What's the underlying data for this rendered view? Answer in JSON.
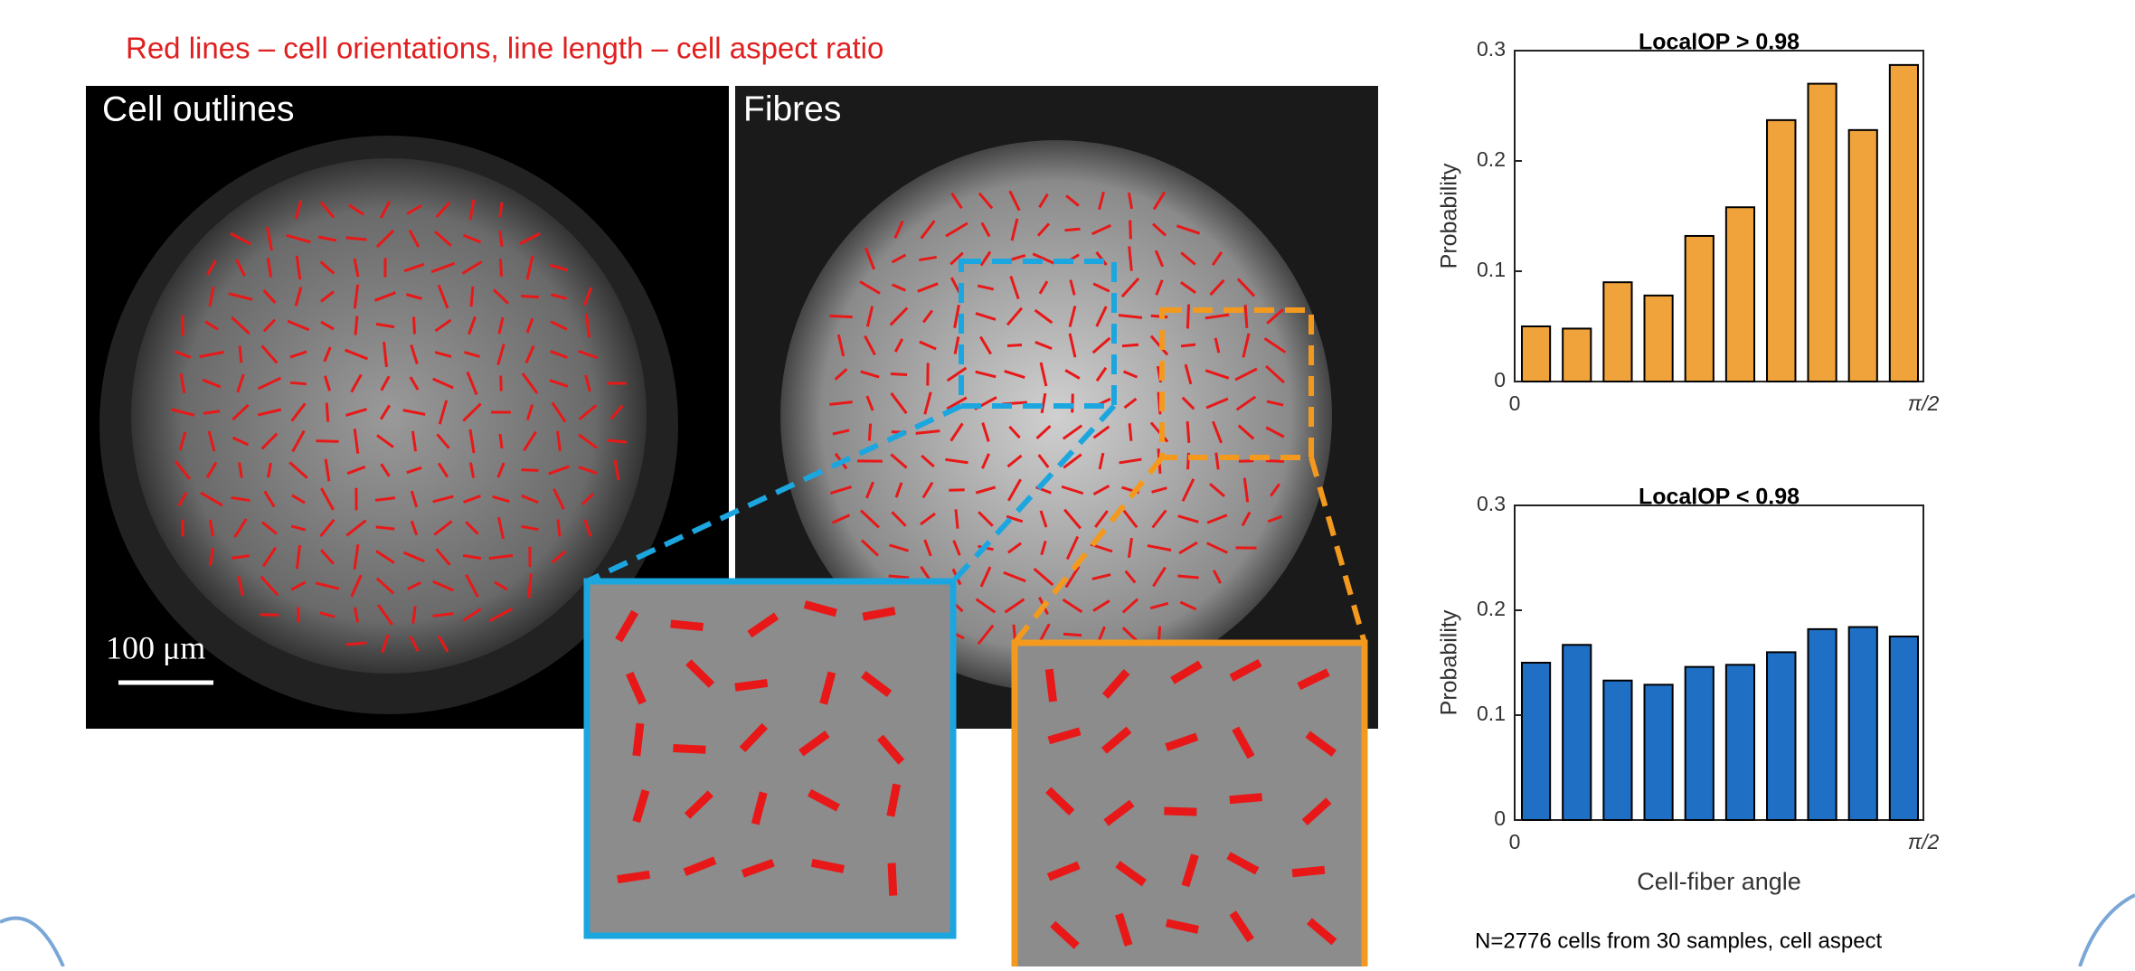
{
  "annotation": "Red lines – cell orientations, line length – cell aspect ratio",
  "panels": [
    {
      "label": "Cell outlines"
    },
    {
      "label": "Fibres"
    }
  ],
  "scale_bar": "100 μm",
  "footnote": "N=2776 cells from 30 samples, cell aspect",
  "chart_data": [
    {
      "type": "histogram",
      "title": "LocalOP > 0.98",
      "ylabel": "Probability",
      "color": "#f0a33a",
      "bins": [
        0,
        0.157,
        0.314,
        0.471,
        0.628,
        0.785,
        0.942,
        1.1,
        1.257,
        1.414,
        1.571
      ],
      "values": [
        0.05,
        0.048,
        0.09,
        0.078,
        0.132,
        0.158,
        0.237,
        0.27,
        0.228,
        0.287
      ],
      "xlim": [
        0,
        1.571
      ],
      "xticks": [
        0,
        {
          "value": 1.571,
          "label": "π/2"
        }
      ],
      "ylim": [
        0,
        0.3
      ],
      "yticks": [
        0,
        0.1,
        0.2,
        0.3
      ]
    },
    {
      "type": "histogram",
      "title": "LocalOP < 0.98",
      "ylabel": "Probability",
      "xlabel": "Cell-fiber angle",
      "color": "#1f6fc5",
      "bins": [
        0,
        0.157,
        0.314,
        0.471,
        0.628,
        0.785,
        0.942,
        1.1,
        1.257,
        1.414,
        1.571
      ],
      "values": [
        0.15,
        0.167,
        0.133,
        0.129,
        0.146,
        0.148,
        0.16,
        0.182,
        0.184,
        0.175
      ],
      "xlim": [
        0,
        1.571
      ],
      "xticks": [
        0,
        {
          "value": 1.571,
          "label": "π/2"
        }
      ],
      "ylim": [
        0,
        0.3
      ],
      "yticks": [
        0,
        0.1,
        0.2,
        0.3
      ]
    }
  ]
}
